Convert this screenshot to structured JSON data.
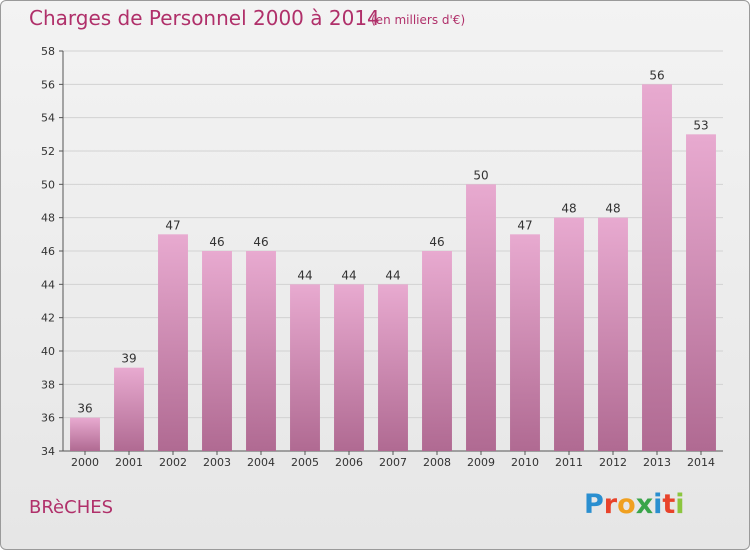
{
  "title": "Charges de Personnel 2000 à 2014",
  "subtitle": "(en milliers d'€)",
  "commune": "BRèCHES",
  "logo": {
    "letters": [
      "P",
      "r",
      "o",
      "x",
      "i",
      "t",
      "i"
    ],
    "colors": [
      "#2a8fd0",
      "#e8432b",
      "#f0a020",
      "#3aa54a",
      "#2a8fd0",
      "#e8432b",
      "#8cc63f"
    ]
  },
  "colors": {
    "bar_top": "#e8aad0",
    "bar_bottom": "#b06a92",
    "title": "#b0306a"
  },
  "chart_data": {
    "type": "bar",
    "categories": [
      "2000",
      "2001",
      "2002",
      "2003",
      "2004",
      "2005",
      "2006",
      "2007",
      "2008",
      "2009",
      "2010",
      "2011",
      "2012",
      "2013",
      "2014"
    ],
    "values": [
      36,
      39,
      47,
      46,
      46,
      44,
      44,
      44,
      46,
      50,
      47,
      48,
      48,
      56,
      53
    ],
    "ylim": [
      34,
      58
    ],
    "yticks": [
      34,
      36,
      38,
      40,
      42,
      44,
      46,
      48,
      50,
      52,
      54,
      56,
      58
    ],
    "grid": true,
    "legend": "none"
  }
}
